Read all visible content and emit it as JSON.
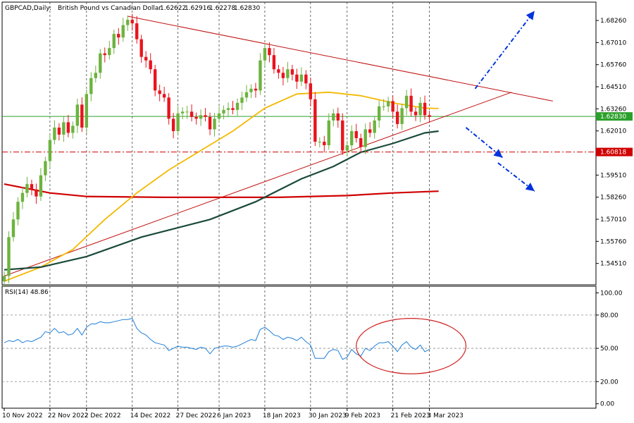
{
  "chart_data": {
    "type": "candlestick",
    "header": {
      "symbol": "GBPCAD,Daily:",
      "description": "British Pound vs Canadian Dollar",
      "ohlc": [
        "1.62622",
        "1.62916",
        "1.62278",
        "1.62830"
      ]
    },
    "price_ylim": [
      1.533,
      1.693
    ],
    "price_ticks": [
      "1.68260",
      "1.67010",
      "1.65760",
      "1.64510",
      "1.63260",
      "1.62010",
      "1.59510",
      "1.58260",
      "1.57010",
      "1.55760",
      "1.54510"
    ],
    "current_price": {
      "value": 1.6283,
      "label": "1.62830",
      "color": "#2ca02c"
    },
    "support_level": {
      "value": 1.60818,
      "label": "1.60818",
      "color": "#d00000"
    },
    "x_labels": [
      {
        "index": 0,
        "label": "10 Nov 2022"
      },
      {
        "index": 10,
        "label": "22 Nov 2022"
      },
      {
        "index": 18,
        "label": "2 Dec 2022"
      },
      {
        "index": 28,
        "label": "14 Dec 2022"
      },
      {
        "index": 38,
        "label": "27 Dec 2022"
      },
      {
        "index": 47,
        "label": "6 Jan 2023"
      },
      {
        "index": 57,
        "label": "18 Jan 2023"
      },
      {
        "index": 67,
        "label": "30 Jan 2023"
      },
      {
        "index": 75,
        "label": "9 Feb 2023"
      },
      {
        "index": 85,
        "label": "21 Feb 2023"
      },
      {
        "index": 93,
        "label": "3 Mar 2023"
      }
    ],
    "closes": [
      1.538,
      1.56,
      1.57,
      1.58,
      1.585,
      1.59,
      1.587,
      1.583,
      1.595,
      1.603,
      1.615,
      1.622,
      1.618,
      1.625,
      1.619,
      1.623,
      1.635,
      1.622,
      1.641,
      1.65,
      1.653,
      1.664,
      1.663,
      1.667,
      1.675,
      1.673,
      1.68,
      1.683,
      1.681,
      1.672,
      1.662,
      1.66,
      1.655,
      1.643,
      1.641,
      1.639,
      1.627,
      1.62,
      1.63,
      1.631,
      1.631,
      1.628,
      1.627,
      1.629,
      1.628,
      1.621,
      1.627,
      1.63,
      1.632,
      1.633,
      1.632,
      1.636,
      1.639,
      1.642,
      1.644,
      1.643,
      1.66,
      1.667,
      1.663,
      1.655,
      1.653,
      1.65,
      1.655,
      1.652,
      1.648,
      1.652,
      1.647,
      1.638,
      1.614,
      1.614,
      1.612,
      1.626,
      1.63,
      1.626,
      1.609,
      1.612,
      1.62,
      1.616,
      1.611,
      1.621,
      1.619,
      1.626,
      1.634,
      1.634,
      1.637,
      1.631,
      1.624,
      1.633,
      1.64,
      1.631,
      1.629,
      1.636,
      1.629,
      1.628
    ],
    "ma_fast": {
      "label": "",
      "color": "#f5b800",
      "values": [
        [
          0,
          1.535
        ],
        [
          8,
          1.543
        ],
        [
          15,
          1.553
        ],
        [
          22,
          1.57
        ],
        [
          29,
          1.585
        ],
        [
          36,
          1.598
        ],
        [
          43,
          1.609
        ],
        [
          50,
          1.62
        ],
        [
          57,
          1.633
        ],
        [
          64,
          1.641
        ],
        [
          71,
          1.642
        ],
        [
          78,
          1.64
        ],
        [
          85,
          1.636
        ],
        [
          92,
          1.633
        ],
        [
          95,
          1.6328
        ]
      ]
    },
    "ma_mid": {
      "label": "",
      "color": "#1a4a3a",
      "values": [
        [
          0,
          1.5415
        ],
        [
          8,
          1.543
        ],
        [
          18,
          1.549
        ],
        [
          30,
          1.56
        ],
        [
          45,
          1.57
        ],
        [
          55,
          1.58
        ],
        [
          65,
          1.593
        ],
        [
          72,
          1.6
        ],
        [
          78,
          1.608
        ],
        [
          85,
          1.613
        ],
        [
          92,
          1.619
        ],
        [
          95,
          1.62
        ]
      ]
    },
    "ma_slow": {
      "label": "",
      "color": "#d00000",
      "values": [
        [
          0,
          1.59
        ],
        [
          10,
          1.585
        ],
        [
          18,
          1.583
        ],
        [
          35,
          1.5825
        ],
        [
          60,
          1.5825
        ],
        [
          75,
          1.5835
        ],
        [
          85,
          1.585
        ],
        [
          95,
          1.586
        ]
      ]
    },
    "trendline_upper": {
      "color": "#c01010",
      "from": [
        27,
        1.685
      ],
      "to": [
        120,
        1.637
      ]
    },
    "trendline_lower": {
      "color": "#c01010",
      "from": [
        0,
        1.538
      ],
      "to": [
        111,
        1.642
      ]
    },
    "rsi": {
      "label": "RSI(14) 48.86",
      "ylim": [
        -4,
        106
      ],
      "ticks": [
        "100.00",
        "80.00",
        "50.00",
        "20.00",
        "0.00"
      ],
      "levels": [
        80,
        50,
        20
      ],
      "values": [
        55,
        57,
        56,
        58,
        55,
        57,
        56,
        58,
        60,
        65,
        64,
        68,
        64,
        65,
        62,
        63,
        68,
        62,
        69,
        72,
        72,
        74,
        73,
        73,
        74,
        75,
        76,
        76,
        77,
        68,
        64,
        62,
        58,
        55,
        54,
        53,
        48,
        50,
        52,
        51,
        51,
        50,
        49,
        51,
        50,
        45,
        50,
        51,
        52,
        52,
        51,
        52,
        54,
        56,
        58,
        57,
        67,
        69,
        66,
        62,
        61,
        58,
        60,
        59,
        57,
        60,
        56,
        53,
        41,
        41,
        41,
        47,
        49,
        48,
        40,
        42,
        49,
        45,
        43,
        50,
        48,
        52,
        55,
        55,
        56,
        52,
        47,
        53,
        56,
        51,
        49,
        53,
        47,
        49
      ],
      "color": "#1e7fd8"
    },
    "annotation_ellipse": {
      "color": "#d02020",
      "center_index": 89,
      "center_value": 52,
      "rx_bars": 12,
      "ry_value": 10
    },
    "arrows": [
      {
        "direction": "up",
        "color": "#0033dd",
        "from": [
          103,
          1.644
        ],
        "to": [
          116,
          1.688
        ]
      },
      {
        "direction": "down",
        "color": "#0033dd",
        "from": [
          101,
          1.622
        ],
        "to": [
          109,
          1.605
        ]
      },
      {
        "direction": "down",
        "color": "#0033dd",
        "from": [
          108,
          1.602
        ],
        "to": [
          116,
          1.586
        ]
      }
    ]
  }
}
